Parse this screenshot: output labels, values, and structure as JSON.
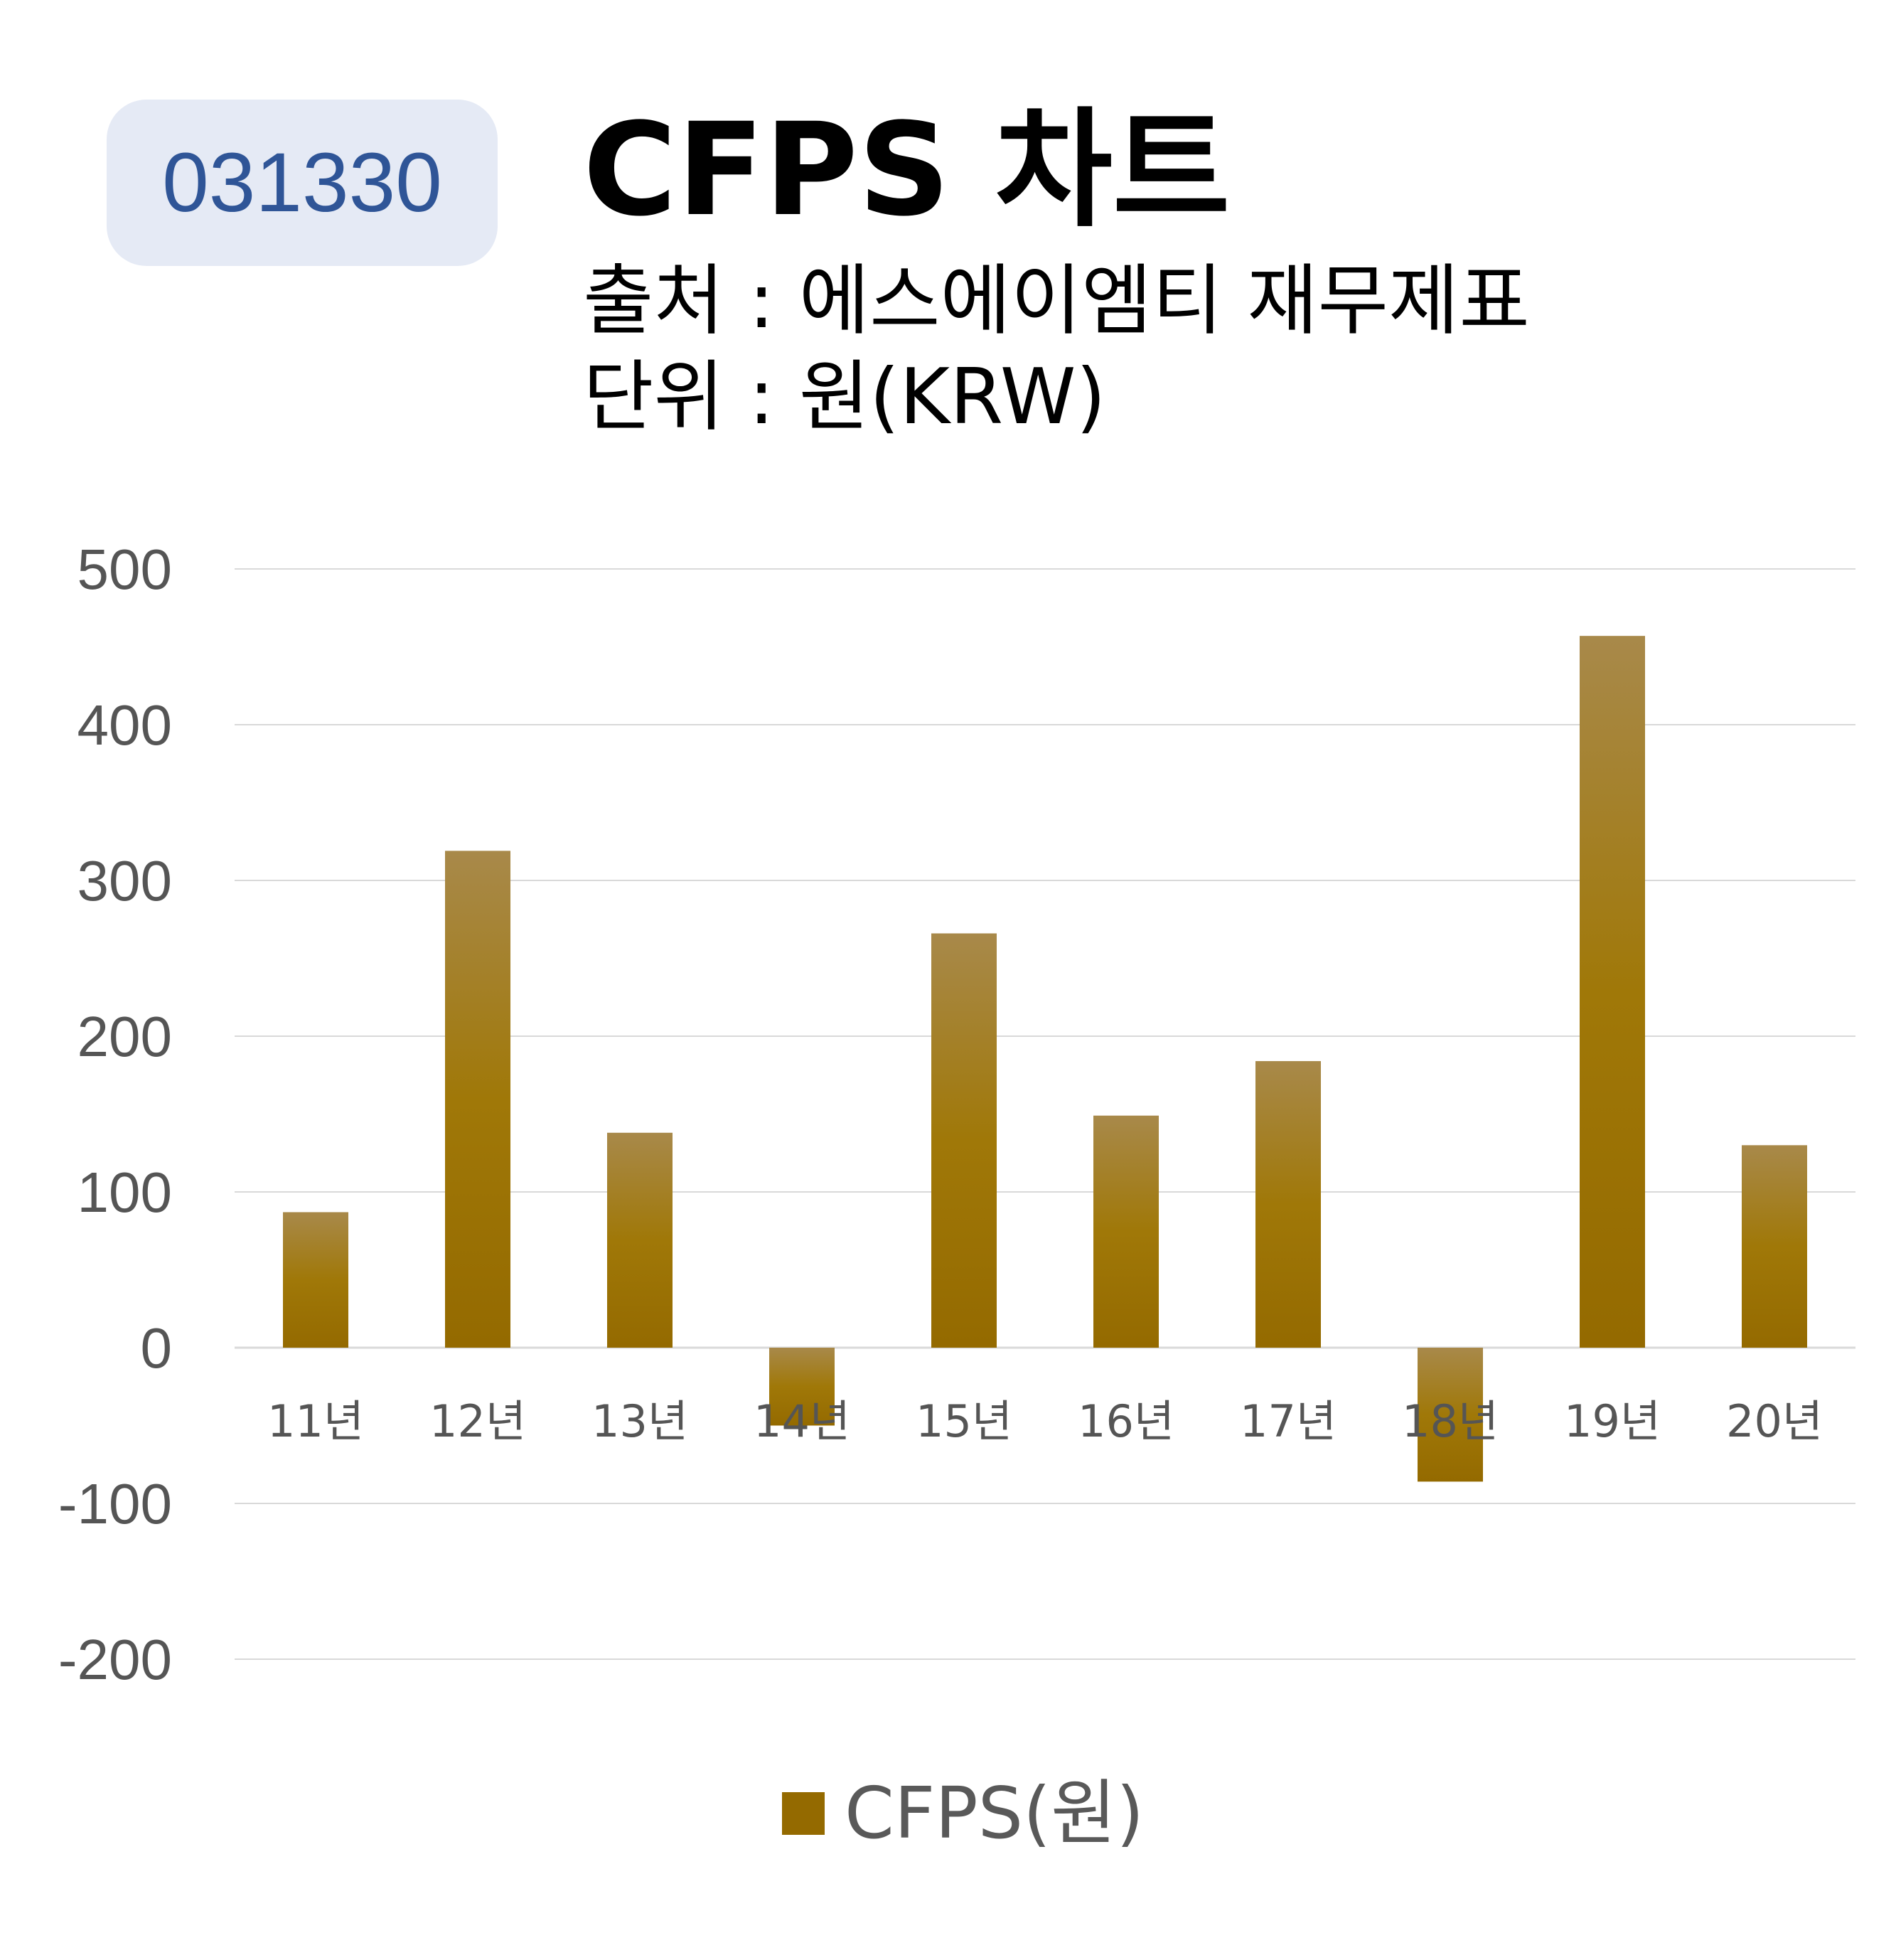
{
  "header": {
    "ticker": "031330",
    "title": "CFPS 차트",
    "source": "출처 : 에스에이엠티 재무제표",
    "unit": "단위 : 원(KRW)"
  },
  "colors": {
    "bar_top": "#a8894a",
    "bar_bottom": "#946a00",
    "badge_bg": "#e5eaf5",
    "badge_text": "#2f5597",
    "grid": "#d9d9d9"
  },
  "chart_data": {
    "type": "bar",
    "categories": [
      "11년",
      "12년",
      "13년",
      "14년",
      "15년",
      "16년",
      "17년",
      "18년",
      "19년",
      "20년"
    ],
    "series": [
      {
        "name": "CFPS(원)",
        "values": [
          87,
          319,
          138,
          -50,
          266,
          149,
          184,
          -86,
          457,
          130
        ]
      }
    ],
    "ylim": [
      -200,
      500
    ],
    "yticks": [
      500,
      400,
      300,
      200,
      100,
      0,
      -100,
      -200
    ],
    "grid": true,
    "legend": "bottom"
  }
}
